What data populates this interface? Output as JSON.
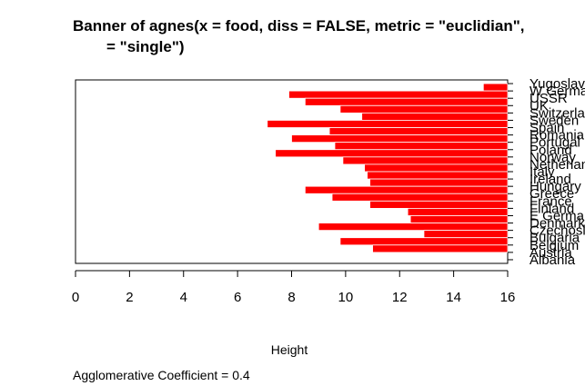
{
  "chart_data": {
    "type": "bar",
    "orientation": "horizontal",
    "title_lines": [
      "Banner of  agnes(x = food, diss = FALSE, metric = \"euclidian\",",
      "= \"single\")"
    ],
    "xlabel": "Height",
    "xlim": [
      0,
      16
    ],
    "x_ticks": [
      0,
      2,
      4,
      6,
      8,
      10,
      12,
      14,
      16
    ],
    "bar_color": "#ff0000",
    "categories": [
      "Yugoslavia",
      "W Germany",
      "USSR",
      "UK",
      "Switzerland",
      "Sweden",
      "Spain",
      "Romania",
      "Portugal",
      "Poland",
      "Norway",
      "Netherlands",
      "Italy",
      "Ireland",
      "Hungary",
      "Greece",
      "France",
      "Finland",
      "E Germany",
      "Denmark",
      "Czechoslovakia",
      "Bulgaria",
      "Belgium",
      "Austria",
      "Albania"
    ],
    "merge_heights": [
      15.1,
      7.9,
      8.5,
      9.8,
      10.6,
      7.1,
      9.4,
      8.0,
      9.6,
      7.4,
      9.9,
      10.7,
      10.8,
      10.9,
      8.5,
      9.5,
      10.9,
      12.3,
      12.4,
      9.0,
      12.9,
      9.8,
      11.0,
      16.0
    ]
  },
  "footer": {
    "coefficient_text": "Agglomerative Coefficient =  0.4"
  }
}
